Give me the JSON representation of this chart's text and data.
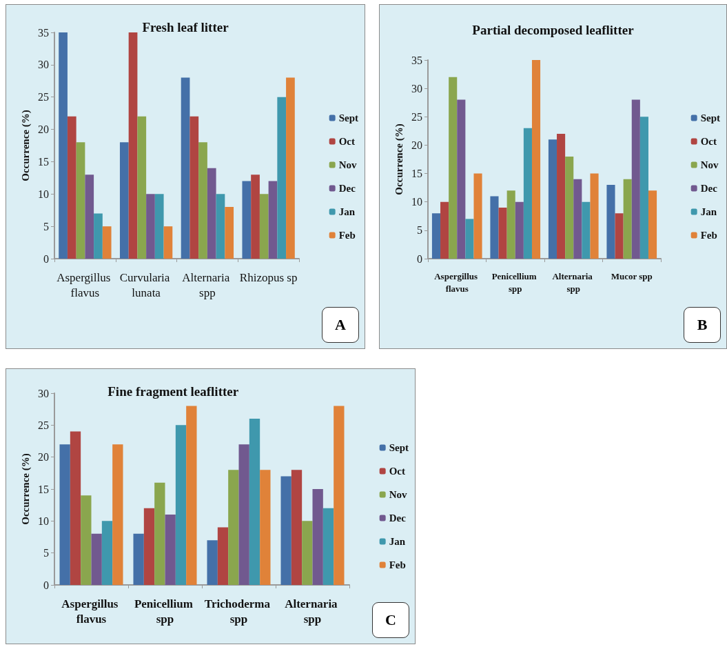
{
  "chart_data": [
    {
      "type": "bar",
      "title": "Fresh leaf litter",
      "ylabel": "Occurrence (%)",
      "categories": [
        "Aspergillus flavus",
        "Curvularia lunata",
        "Alternaria spp",
        "Rhizopus sp"
      ],
      "series": [
        {
          "name": "Sept",
          "color": "#4470a8",
          "values": [
            35,
            18,
            28,
            12
          ]
        },
        {
          "name": "Oct",
          "color": "#b04542",
          "values": [
            22,
            35,
            22,
            13
          ]
        },
        {
          "name": "Nov",
          "color": "#8aa64e",
          "values": [
            18,
            22,
            18,
            10
          ]
        },
        {
          "name": "Dec",
          "color": "#71598f",
          "values": [
            13,
            10,
            14,
            12
          ]
        },
        {
          "name": "Jan",
          "color": "#3f98ad",
          "values": [
            7,
            10,
            10,
            25
          ]
        },
        {
          "name": "Feb",
          "color": "#e08239",
          "values": [
            5,
            5,
            8,
            28
          ]
        }
      ],
      "ylim": [
        0,
        35
      ],
      "yticks": [
        0,
        5,
        10,
        15,
        20,
        25,
        30,
        35
      ],
      "grid": false,
      "legend": "right",
      "annotations": [
        "A"
      ]
    },
    {
      "type": "bar",
      "title": "Partial decomposed leaflitter",
      "ylabel": "Occurrence (%)",
      "categories": [
        "Aspergillus flavus",
        "Penicellium spp",
        "Alternaria spp",
        "Mucor spp"
      ],
      "series": [
        {
          "name": "Sept",
          "color": "#4470a8",
          "values": [
            8,
            11,
            21,
            13
          ]
        },
        {
          "name": "Oct",
          "color": "#b04542",
          "values": [
            10,
            9,
            22,
            8
          ]
        },
        {
          "name": "Nov",
          "color": "#8aa64e",
          "values": [
            32,
            12,
            18,
            14
          ]
        },
        {
          "name": "Dec",
          "color": "#71598f",
          "values": [
            28,
            10,
            14,
            28
          ]
        },
        {
          "name": "Jan",
          "color": "#3f98ad",
          "values": [
            7,
            23,
            10,
            25
          ]
        },
        {
          "name": "Feb",
          "color": "#e08239",
          "values": [
            15,
            35,
            15,
            12
          ]
        }
      ],
      "ylim": [
        0,
        35
      ],
      "yticks": [
        0,
        5,
        10,
        15,
        20,
        25,
        30,
        35
      ],
      "grid": false,
      "legend": "right",
      "annotations": [
        "B"
      ]
    },
    {
      "type": "bar",
      "title": "Fine fragment leaflitter",
      "ylabel": "Occurrence (%)",
      "categories": [
        "Aspergillus flavus",
        "Penicellium spp",
        "Trichoderma spp",
        "Alternaria spp"
      ],
      "series": [
        {
          "name": "Sept",
          "color": "#4470a8",
          "values": [
            22,
            8,
            7,
            17
          ]
        },
        {
          "name": "Oct",
          "color": "#b04542",
          "values": [
            24,
            12,
            9,
            18
          ]
        },
        {
          "name": "Nov",
          "color": "#8aa64e",
          "values": [
            14,
            16,
            18,
            10
          ]
        },
        {
          "name": "Dec",
          "color": "#71598f",
          "values": [
            8,
            11,
            22,
            15
          ]
        },
        {
          "name": "Jan",
          "color": "#3f98ad",
          "values": [
            10,
            25,
            26,
            12
          ]
        },
        {
          "name": "Feb",
          "color": "#e08239",
          "values": [
            22,
            28,
            18,
            28
          ]
        }
      ],
      "ylim": [
        0,
        30
      ],
      "yticks": [
        0,
        5,
        10,
        15,
        20,
        25,
        30
      ],
      "grid": false,
      "legend": "right",
      "annotations": [
        "C"
      ]
    }
  ]
}
